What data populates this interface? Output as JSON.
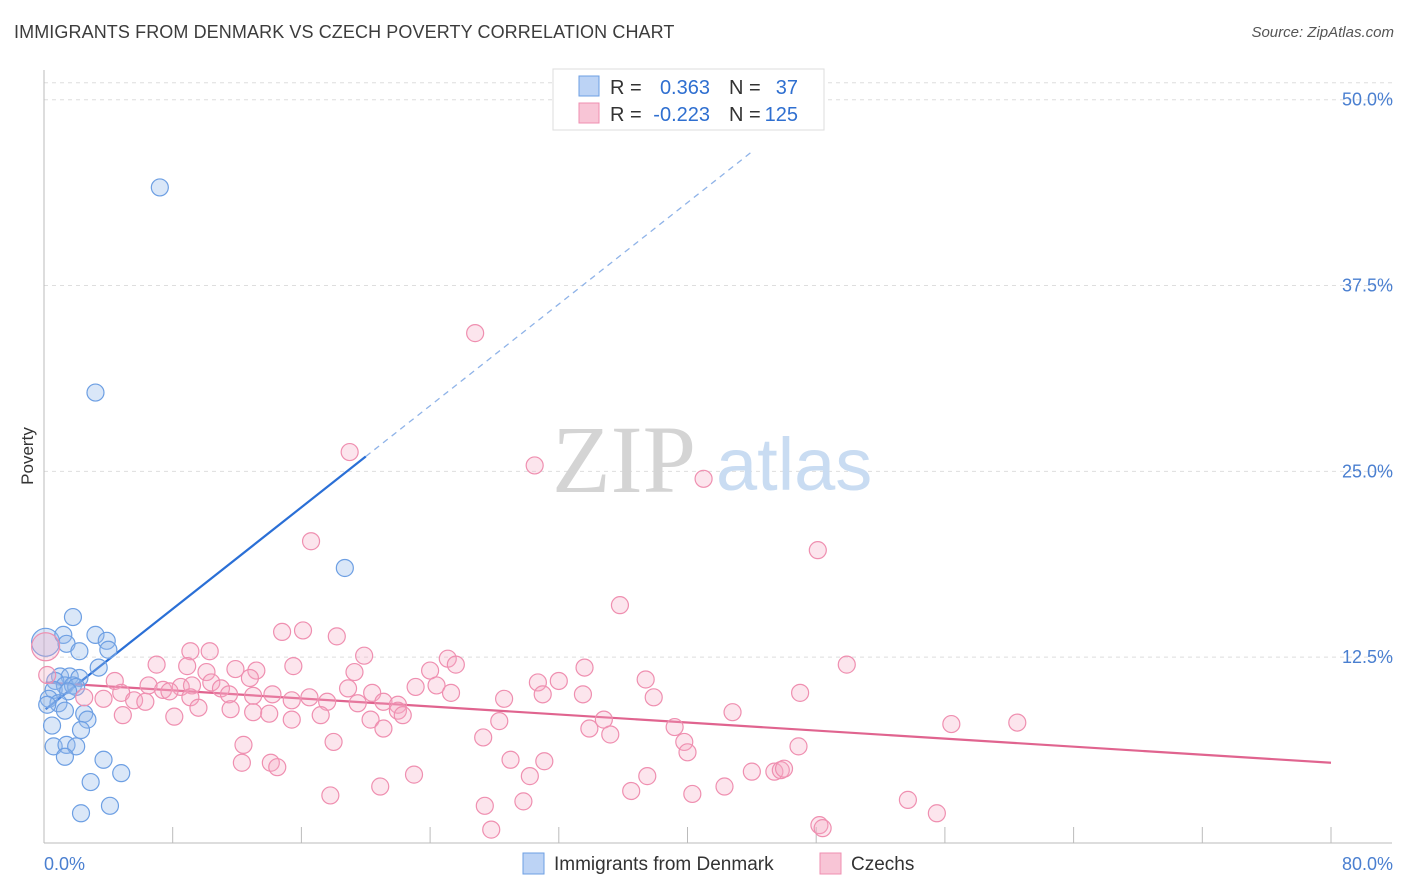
{
  "title": "IMMIGRANTS FROM DENMARK VS CZECH POVERTY CORRELATION CHART",
  "source": "Source: ZipAtlas.com",
  "watermark": {
    "zip": "ZIP",
    "atlas": "atlas"
  },
  "colors": {
    "blue": "#6d9fe3",
    "blue_line": "#2a6fd6",
    "pink": "#ef8fb0",
    "pink_line": "#e0648f",
    "tick_label": "#4a7fd0"
  },
  "chart_data": {
    "type": "scatter",
    "title": "IMMIGRANTS FROM DENMARK VS CZECH POVERTY CORRELATION CHART",
    "xlabel": "",
    "ylabel": "Poverty",
    "xlim": [
      0,
      80
    ],
    "ylim": [
      0,
      52
    ],
    "x_tick_labels": [
      "0.0%",
      "80.0%"
    ],
    "y_ticks": [
      12.5,
      25.0,
      37.5,
      50.0
    ],
    "y_tick_labels": [
      "12.5%",
      "25.0%",
      "37.5%",
      "50.0%"
    ],
    "legend": [
      {
        "r_label": "R =",
        "r_value": "0.363",
        "n_label": "N =",
        "n_value": "37"
      },
      {
        "r_label": "R =",
        "r_value": "-0.223",
        "n_label": "N =",
        "n_value": "125"
      }
    ],
    "series": [
      {
        "name": "Immigrants from Denmark",
        "color": "#6d9fe3",
        "trend": {
          "x0": 0.1,
          "y0": 9.0,
          "x1": 20.0,
          "y1": 26.0,
          "dashed_to_x": 44,
          "dashed_to_y": 46.5
        },
        "points": [
          [
            7.2,
            44.1
          ],
          [
            3.2,
            30.3
          ],
          [
            18.7,
            18.5
          ],
          [
            1.8,
            15.2
          ],
          [
            1.2,
            14.0
          ],
          [
            3.2,
            14.0
          ],
          [
            3.9,
            13.6
          ],
          [
            1.4,
            13.4
          ],
          [
            4.0,
            13.0
          ],
          [
            2.2,
            12.9
          ],
          [
            3.4,
            11.8
          ],
          [
            1.0,
            11.2
          ],
          [
            1.6,
            11.2
          ],
          [
            2.2,
            11.1
          ],
          [
            0.7,
            10.9
          ],
          [
            1.3,
            10.6
          ],
          [
            1.8,
            10.6
          ],
          [
            2.0,
            10.5
          ],
          [
            0.6,
            10.3
          ],
          [
            1.5,
            10.2
          ],
          [
            0.3,
            9.7
          ],
          [
            0.9,
            9.4
          ],
          [
            0.2,
            9.3
          ],
          [
            1.3,
            8.9
          ],
          [
            2.5,
            8.7
          ],
          [
            2.7,
            8.3
          ],
          [
            0.5,
            7.9
          ],
          [
            2.3,
            7.6
          ],
          [
            0.6,
            6.5
          ],
          [
            1.4,
            6.6
          ],
          [
            2.0,
            6.5
          ],
          [
            1.3,
            5.8
          ],
          [
            3.7,
            5.6
          ],
          [
            4.8,
            4.7
          ],
          [
            2.9,
            4.1
          ],
          [
            4.1,
            2.5
          ],
          [
            2.3,
            2.0
          ]
        ],
        "large_points": [
          [
            0.1,
            13.5
          ]
        ]
      },
      {
        "name": "Czechs",
        "color": "#ef8fb0",
        "trend": {
          "x0": 0.1,
          "y0": 10.8,
          "x1": 80.0,
          "y1": 5.4
        },
        "points": [
          [
            26.8,
            34.3
          ],
          [
            19.0,
            26.3
          ],
          [
            30.5,
            25.4
          ],
          [
            41.0,
            24.5
          ],
          [
            16.6,
            20.3
          ],
          [
            48.1,
            19.7
          ],
          [
            35.8,
            16.0
          ],
          [
            14.8,
            14.2
          ],
          [
            16.1,
            14.3
          ],
          [
            18.2,
            13.9
          ],
          [
            9.1,
            12.9
          ],
          [
            10.3,
            12.9
          ],
          [
            19.9,
            12.6
          ],
          [
            25.1,
            12.4
          ],
          [
            7.0,
            12.0
          ],
          [
            8.9,
            11.9
          ],
          [
            15.5,
            11.9
          ],
          [
            11.9,
            11.7
          ],
          [
            13.2,
            11.6
          ],
          [
            10.1,
            11.5
          ],
          [
            19.3,
            11.5
          ],
          [
            24.0,
            11.6
          ],
          [
            25.6,
            12.0
          ],
          [
            33.6,
            11.8
          ],
          [
            37.4,
            11.0
          ],
          [
            49.9,
            12.0
          ],
          [
            30.7,
            10.8
          ],
          [
            32.0,
            10.9
          ],
          [
            6.5,
            10.6
          ],
          [
            8.5,
            10.5
          ],
          [
            9.2,
            10.6
          ],
          [
            10.4,
            10.8
          ],
          [
            11.0,
            10.4
          ],
          [
            12.8,
            11.1
          ],
          [
            16.5,
            9.8
          ],
          [
            18.9,
            10.4
          ],
          [
            20.4,
            10.1
          ],
          [
            23.1,
            10.5
          ],
          [
            24.4,
            10.6
          ],
          [
            25.3,
            10.1
          ],
          [
            7.4,
            10.3
          ],
          [
            7.8,
            10.2
          ],
          [
            4.4,
            10.9
          ],
          [
            4.8,
            10.1
          ],
          [
            5.6,
            9.6
          ],
          [
            6.3,
            9.5
          ],
          [
            9.1,
            9.8
          ],
          [
            11.5,
            10.0
          ],
          [
            13.0,
            9.9
          ],
          [
            14.2,
            10.0
          ],
          [
            15.4,
            9.6
          ],
          [
            17.6,
            9.5
          ],
          [
            19.5,
            9.4
          ],
          [
            21.1,
            9.5
          ],
          [
            22.0,
            9.3
          ],
          [
            28.6,
            9.7
          ],
          [
            31.0,
            10.0
          ],
          [
            33.5,
            10.0
          ],
          [
            37.9,
            9.8
          ],
          [
            47.0,
            10.1
          ],
          [
            2.5,
            9.8
          ],
          [
            3.7,
            9.7
          ],
          [
            4.9,
            8.6
          ],
          [
            8.1,
            8.5
          ],
          [
            9.6,
            9.1
          ],
          [
            11.6,
            9.0
          ],
          [
            13.0,
            8.8
          ],
          [
            14.0,
            8.7
          ],
          [
            15.4,
            8.3
          ],
          [
            17.2,
            8.6
          ],
          [
            20.3,
            8.3
          ],
          [
            21.1,
            7.7
          ],
          [
            22.0,
            8.9
          ],
          [
            22.3,
            8.6
          ],
          [
            28.3,
            8.2
          ],
          [
            33.9,
            7.7
          ],
          [
            34.8,
            8.3
          ],
          [
            35.2,
            7.3
          ],
          [
            39.2,
            7.8
          ],
          [
            42.8,
            8.8
          ],
          [
            56.4,
            8.0
          ],
          [
            60.5,
            8.1
          ],
          [
            12.4,
            6.6
          ],
          [
            18.0,
            6.8
          ],
          [
            27.3,
            7.1
          ],
          [
            39.8,
            6.8
          ],
          [
            40.0,
            6.1
          ],
          [
            46.9,
            6.5
          ],
          [
            12.3,
            5.4
          ],
          [
            14.1,
            5.4
          ],
          [
            14.5,
            5.1
          ],
          [
            23.0,
            4.6
          ],
          [
            29.0,
            5.6
          ],
          [
            31.1,
            5.5
          ],
          [
            30.2,
            4.5
          ],
          [
            37.5,
            4.5
          ],
          [
            44.0,
            4.8
          ],
          [
            45.4,
            4.8
          ],
          [
            45.8,
            4.9
          ],
          [
            46.0,
            5.0
          ],
          [
            17.8,
            3.2
          ],
          [
            20.9,
            3.8
          ],
          [
            27.4,
            2.5
          ],
          [
            29.8,
            2.8
          ],
          [
            36.5,
            3.5
          ],
          [
            40.3,
            3.3
          ],
          [
            42.3,
            3.8
          ],
          [
            53.7,
            2.9
          ],
          [
            55.5,
            2.0
          ],
          [
            48.2,
            1.2
          ],
          [
            48.4,
            1.0
          ],
          [
            27.8,
            0.9
          ],
          [
            0.2,
            11.3
          ]
        ],
        "large_points": [
          [
            0.1,
            13.2
          ]
        ]
      }
    ]
  },
  "bottom_legend": [
    {
      "label": "Immigrants from Denmark"
    },
    {
      "label": "Czechs"
    }
  ]
}
